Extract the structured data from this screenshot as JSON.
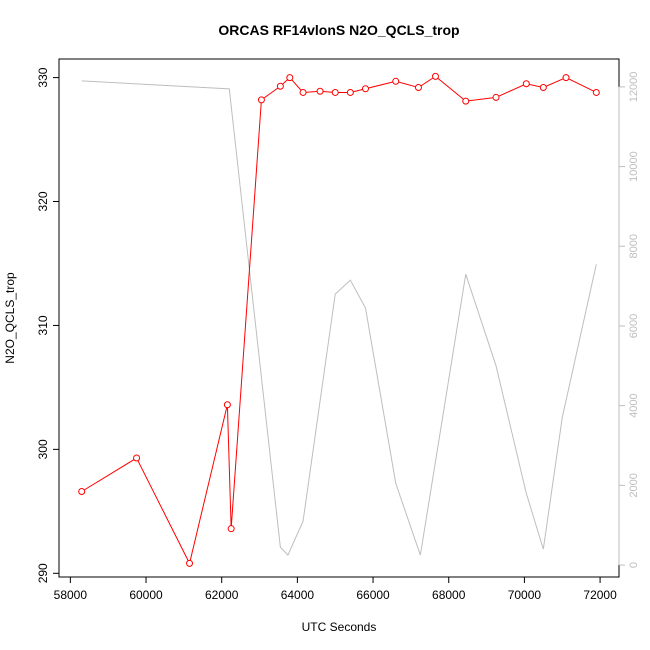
{
  "chart_data": {
    "type": "line",
    "title": "ORCAS RF14vlonS N2O_QCLS_trop",
    "xlabel": "UTC Seconds",
    "ylabel": "N2O_QCLS_trop",
    "xlim": [
      57700,
      72500
    ],
    "ylim": [
      289.7,
      331.5
    ],
    "ylim_right": [
      -300,
      12700
    ],
    "x_ticks": [
      58000,
      60000,
      62000,
      64000,
      66000,
      68000,
      70000,
      72000
    ],
    "y_ticks": [
      290,
      300,
      310,
      320,
      330
    ],
    "y_ticks_right": [
      0,
      2000,
      4000,
      6000,
      8000,
      10000,
      12000
    ],
    "series": [
      {
        "color": "#ff0000",
        "axis": "left",
        "markers": "open-circle",
        "x": [
          58300,
          59750,
          61150,
          62150,
          62250,
          63050,
          63550,
          63800,
          64150,
          64600,
          65000,
          65400,
          65800,
          66600,
          67200,
          67650,
          68450,
          69250,
          70050,
          70500,
          71100,
          71900
        ],
        "y": [
          296.6,
          299.3,
          290.8,
          303.6,
          293.6,
          328.2,
          329.3,
          330.0,
          328.8,
          328.9,
          328.8,
          328.8,
          329.1,
          329.7,
          329.2,
          330.1,
          328.1,
          328.4,
          329.5,
          329.2,
          330.0,
          328.8
        ]
      },
      {
        "color": "#bebebe",
        "axis": "right",
        "x": [
          58300,
          62200,
          63550,
          63750,
          64150,
          65000,
          65400,
          65800,
          66600,
          67250,
          68450,
          69250,
          70050,
          70500,
          71000,
          71900
        ],
        "y": [
          12150,
          11950,
          450,
          250,
          1100,
          6800,
          7150,
          6450,
          2050,
          250,
          7300,
          5000,
          1800,
          400,
          3700,
          7550
        ]
      }
    ]
  }
}
